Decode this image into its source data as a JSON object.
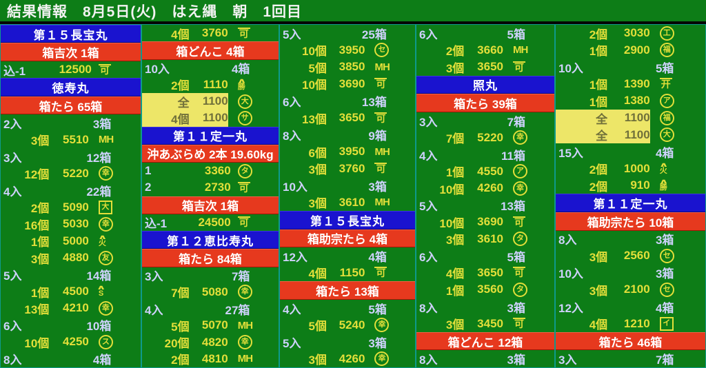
{
  "title": "結果情報　8月5日(火)　はえ縄　朝　1回目",
  "colors": {
    "background_green": "#0d7d17",
    "boat_bar_blue": "#1a13cf",
    "species_bar_red": "#e6391e",
    "price_text_yellow": "#e3df3a",
    "label_text_lavender": "#ced2fc",
    "highlight_yellow": "#ede668",
    "column_border_teal": "#0e9a8c"
  },
  "columns": [
    {
      "rows": [
        {
          "type": "boat",
          "text": "第１５長宝丸"
        },
        {
          "type": "species",
          "text": "箱吉次 1箱"
        },
        {
          "type": "price",
          "idx": "込-1",
          "price": "12500",
          "mark": {
            "t": "可",
            "s": "overline"
          }
        },
        {
          "type": "boat",
          "text": "徳寿丸"
        },
        {
          "type": "species",
          "text": "箱たら 65箱"
        },
        {
          "type": "group",
          "left": "2入",
          "right": "3箱"
        },
        {
          "type": "price",
          "qty": "3個",
          "price": "5510",
          "mark": {
            "t": "MH",
            "s": "plain"
          }
        },
        {
          "type": "group",
          "left": "3入",
          "right": "12箱"
        },
        {
          "type": "price",
          "qty": "12個",
          "price": "5220",
          "mark": {
            "t": "幸",
            "s": "circle"
          }
        },
        {
          "type": "group",
          "left": "4入",
          "right": "22箱"
        },
        {
          "type": "price",
          "qty": "2個",
          "price": "5090",
          "mark": {
            "t": "大",
            "s": "box"
          }
        },
        {
          "type": "price",
          "qty": "16個",
          "price": "5030",
          "mark": {
            "t": "幸",
            "s": "circle"
          }
        },
        {
          "type": "price",
          "qty": "1個",
          "price": "5000",
          "mark": {
            "t": "火",
            "s": "roof"
          }
        },
        {
          "type": "price",
          "qty": "3個",
          "price": "4880",
          "mark": {
            "t": "友",
            "s": "circle"
          }
        },
        {
          "type": "group",
          "left": "5入",
          "right": "14箱"
        },
        {
          "type": "price",
          "qty": "1個",
          "price": "4500",
          "mark": {
            "t": "S",
            "s": "roof"
          }
        },
        {
          "type": "price",
          "qty": "13個",
          "price": "4210",
          "mark": {
            "t": "幸",
            "s": "circle"
          }
        },
        {
          "type": "group",
          "left": "6入",
          "right": "10箱"
        },
        {
          "type": "price",
          "qty": "10個",
          "price": "4250",
          "mark": {
            "t": "ス",
            "s": "circle"
          }
        },
        {
          "type": "group",
          "left": "8入",
          "right": "4箱"
        }
      ]
    },
    {
      "rows": [
        {
          "type": "price",
          "qty": "4個",
          "price": "3760",
          "mark": {
            "t": "可",
            "s": "overline"
          }
        },
        {
          "type": "species",
          "text": "箱どんこ 4箱"
        },
        {
          "type": "group",
          "left": "10入",
          "right": "4箱"
        },
        {
          "type": "price",
          "qty": "2個",
          "price": "1110",
          "mark": {
            "t": "勝",
            "s": "roof"
          }
        },
        {
          "type": "price",
          "qty": "全",
          "price": "1100",
          "mark": {
            "t": "大",
            "s": "circle"
          },
          "hl": true
        },
        {
          "type": "price",
          "qty": "4個",
          "price": "1100",
          "mark": {
            "t": "サ",
            "s": "circle"
          },
          "hl": true
        },
        {
          "type": "boat",
          "text": "第１１定一丸"
        },
        {
          "type": "species",
          "text": "沖あぶらめ 2本 19.60kg"
        },
        {
          "type": "price",
          "idx": "1",
          "price": "3360",
          "mark": {
            "t": "タ",
            "s": "circle"
          }
        },
        {
          "type": "price",
          "idx": "2",
          "price": "2730",
          "mark": {
            "t": "可",
            "s": "overline"
          }
        },
        {
          "type": "species",
          "text": "箱吉次 1箱"
        },
        {
          "type": "price",
          "idx": "込-1",
          "price": "24500",
          "mark": {
            "t": "可",
            "s": "overline"
          }
        },
        {
          "type": "boat",
          "text": "第１２恵比寿丸"
        },
        {
          "type": "species",
          "text": "箱たら 84箱"
        },
        {
          "type": "group",
          "left": "3入",
          "right": "7箱"
        },
        {
          "type": "price",
          "qty": "7個",
          "price": "5080",
          "mark": {
            "t": "幸",
            "s": "circle"
          }
        },
        {
          "type": "group",
          "left": "4入",
          "right": "27箱"
        },
        {
          "type": "price",
          "qty": "5個",
          "price": "5070",
          "mark": {
            "t": "MH",
            "s": "plain"
          }
        },
        {
          "type": "price",
          "qty": "20個",
          "price": "4820",
          "mark": {
            "t": "幸",
            "s": "circle"
          }
        },
        {
          "type": "price",
          "qty": "2個",
          "price": "4810",
          "mark": {
            "t": "MH",
            "s": "plain"
          }
        }
      ]
    },
    {
      "rows": [
        {
          "type": "group",
          "left": "5入",
          "right": "25箱"
        },
        {
          "type": "price",
          "qty": "10個",
          "price": "3950",
          "mark": {
            "t": "セ",
            "s": "circle"
          }
        },
        {
          "type": "price",
          "qty": "5個",
          "price": "3850",
          "mark": {
            "t": "MH",
            "s": "plain"
          }
        },
        {
          "type": "price",
          "qty": "10個",
          "price": "3690",
          "mark": {
            "t": "可",
            "s": "overline"
          }
        },
        {
          "type": "group",
          "left": "6入",
          "right": "13箱"
        },
        {
          "type": "price",
          "qty": "13個",
          "price": "3650",
          "mark": {
            "t": "可",
            "s": "overline"
          }
        },
        {
          "type": "group",
          "left": "8入",
          "right": "9箱"
        },
        {
          "type": "price",
          "qty": "6個",
          "price": "3950",
          "mark": {
            "t": "MH",
            "s": "plain"
          }
        },
        {
          "type": "price",
          "qty": "3個",
          "price": "3760",
          "mark": {
            "t": "可",
            "s": "overline"
          }
        },
        {
          "type": "group",
          "left": "10入",
          "right": "3箱"
        },
        {
          "type": "price",
          "qty": "3個",
          "price": "3610",
          "mark": {
            "t": "MH",
            "s": "plain"
          }
        },
        {
          "type": "boat",
          "text": "第１５長宝丸"
        },
        {
          "type": "species",
          "text": "箱助宗たら 4箱"
        },
        {
          "type": "group",
          "left": "12入",
          "right": "4箱"
        },
        {
          "type": "price",
          "qty": "4個",
          "price": "1150",
          "mark": {
            "t": "可",
            "s": "overline"
          }
        },
        {
          "type": "species",
          "text": "箱たら 13箱"
        },
        {
          "type": "group",
          "left": "4入",
          "right": "5箱"
        },
        {
          "type": "price",
          "qty": "5個",
          "price": "5240",
          "mark": {
            "t": "幸",
            "s": "circle"
          }
        },
        {
          "type": "group",
          "left": "5入",
          "right": "3箱"
        },
        {
          "type": "price",
          "qty": "3個",
          "price": "4260",
          "mark": {
            "t": "幸",
            "s": "circle"
          }
        }
      ]
    },
    {
      "rows": [
        {
          "type": "group",
          "left": "6入",
          "right": "5箱"
        },
        {
          "type": "price",
          "qty": "2個",
          "price": "3660",
          "mark": {
            "t": "MH",
            "s": "plain"
          }
        },
        {
          "type": "price",
          "qty": "3個",
          "price": "3650",
          "mark": {
            "t": "可",
            "s": "overline"
          }
        },
        {
          "type": "boat",
          "text": "照丸"
        },
        {
          "type": "species",
          "text": "箱たら 39箱"
        },
        {
          "type": "group",
          "left": "3入",
          "right": "7箱"
        },
        {
          "type": "price",
          "qty": "7個",
          "price": "5220",
          "mark": {
            "t": "幸",
            "s": "circle"
          }
        },
        {
          "type": "group",
          "left": "4入",
          "right": "11箱"
        },
        {
          "type": "price",
          "qty": "1個",
          "price": "4550",
          "mark": {
            "t": "ア",
            "s": "circle"
          }
        },
        {
          "type": "price",
          "qty": "10個",
          "price": "4260",
          "mark": {
            "t": "幸",
            "s": "circle"
          }
        },
        {
          "type": "group",
          "left": "5入",
          "right": "13箱"
        },
        {
          "type": "price",
          "qty": "10個",
          "price": "3690",
          "mark": {
            "t": "可",
            "s": "overline"
          }
        },
        {
          "type": "price",
          "qty": "3個",
          "price": "3610",
          "mark": {
            "t": "タ",
            "s": "circle"
          }
        },
        {
          "type": "group",
          "left": "6入",
          "right": "5箱"
        },
        {
          "type": "price",
          "qty": "4個",
          "price": "3650",
          "mark": {
            "t": "可",
            "s": "overline"
          }
        },
        {
          "type": "price",
          "qty": "1個",
          "price": "3560",
          "mark": {
            "t": "タ",
            "s": "circle"
          }
        },
        {
          "type": "group",
          "left": "8入",
          "right": "3箱"
        },
        {
          "type": "price",
          "qty": "3個",
          "price": "3450",
          "mark": {
            "t": "可",
            "s": "overline"
          }
        },
        {
          "type": "species",
          "text": "箱どんこ 12箱"
        },
        {
          "type": "group",
          "left": "8入",
          "right": "3箱"
        }
      ]
    },
    {
      "rows": [
        {
          "type": "price",
          "qty": "2個",
          "price": "3030",
          "mark": {
            "t": "工",
            "s": "circle"
          }
        },
        {
          "type": "price",
          "qty": "1個",
          "price": "2900",
          "mark": {
            "t": "福",
            "s": "circle"
          }
        },
        {
          "type": "group",
          "left": "10入",
          "right": "5箱"
        },
        {
          "type": "price",
          "qty": "1個",
          "price": "1390",
          "mark": {
            "t": "开",
            "s": "overline"
          }
        },
        {
          "type": "price",
          "qty": "1個",
          "price": "1380",
          "mark": {
            "t": "ア",
            "s": "circle"
          }
        },
        {
          "type": "price",
          "qty": "全",
          "price": "1100",
          "mark": {
            "t": "福",
            "s": "circle"
          },
          "hl": true
        },
        {
          "type": "price",
          "qty": "全",
          "price": "1100",
          "mark": {
            "t": "大",
            "s": "circle"
          },
          "hl": true
        },
        {
          "type": "group",
          "left": "15入",
          "right": "4箱"
        },
        {
          "type": "price",
          "qty": "2個",
          "price": "1000",
          "mark": {
            "t": "火",
            "s": "roof"
          }
        },
        {
          "type": "price",
          "qty": "2個",
          "price": "910",
          "mark": {
            "t": "勝",
            "s": "roof"
          }
        },
        {
          "type": "boat",
          "text": "第１１定一丸"
        },
        {
          "type": "species",
          "text": "箱助宗たら 10箱"
        },
        {
          "type": "group",
          "left": "8入",
          "right": "3箱"
        },
        {
          "type": "price",
          "qty": "3個",
          "price": "2560",
          "mark": {
            "t": "セ",
            "s": "circle"
          }
        },
        {
          "type": "group",
          "left": "10入",
          "right": "3箱"
        },
        {
          "type": "price",
          "qty": "3個",
          "price": "2100",
          "mark": {
            "t": "セ",
            "s": "circle"
          }
        },
        {
          "type": "group",
          "left": "12入",
          "right": "4箱"
        },
        {
          "type": "price",
          "qty": "4個",
          "price": "1210",
          "mark": {
            "t": "イ",
            "s": "box"
          }
        },
        {
          "type": "species",
          "text": "箱たら 46箱"
        },
        {
          "type": "group",
          "left": "3入",
          "right": "7箱"
        }
      ]
    }
  ]
}
